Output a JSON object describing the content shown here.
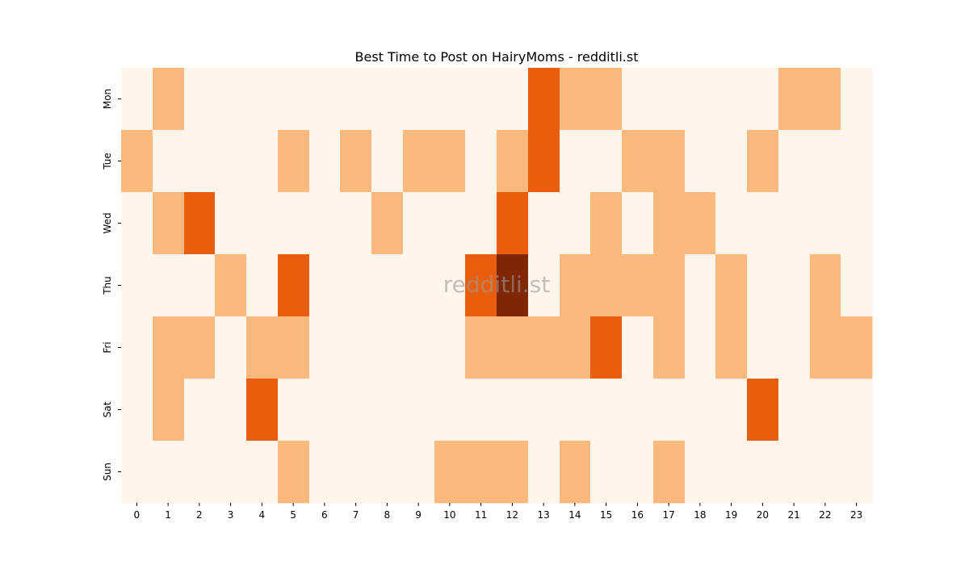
{
  "chart_data": {
    "type": "heatmap",
    "title": "Best Time to Post on HairyMoms - redditli.st",
    "watermark": "redditli.st",
    "xlabel": "",
    "ylabel": "",
    "x_categories": [
      "0",
      "1",
      "2",
      "3",
      "4",
      "5",
      "6",
      "7",
      "8",
      "9",
      "10",
      "11",
      "12",
      "13",
      "14",
      "15",
      "16",
      "17",
      "18",
      "19",
      "20",
      "21",
      "22",
      "23"
    ],
    "y_categories": [
      "Mon",
      "Tue",
      "Wed",
      "Thu",
      "Fri",
      "Sat",
      "Sun"
    ],
    "values": [
      [
        0,
        1,
        0,
        0,
        0,
        0,
        0,
        0,
        0,
        0,
        0,
        0,
        0,
        2,
        1,
        1,
        0,
        0,
        0,
        0,
        0,
        1,
        1,
        0
      ],
      [
        1,
        0,
        0,
        0,
        0,
        1,
        0,
        1,
        0,
        1,
        1,
        0,
        1,
        2,
        0,
        0,
        1,
        1,
        0,
        0,
        1,
        0,
        0,
        0
      ],
      [
        0,
        1,
        2,
        0,
        0,
        0,
        0,
        0,
        1,
        0,
        0,
        0,
        2,
        0,
        0,
        1,
        0,
        1,
        1,
        0,
        0,
        0,
        0,
        0
      ],
      [
        0,
        0,
        0,
        1,
        0,
        2,
        0,
        0,
        0,
        0,
        0,
        2,
        3,
        0,
        1,
        1,
        1,
        1,
        0,
        1,
        0,
        0,
        1,
        0
      ],
      [
        0,
        1,
        1,
        0,
        1,
        1,
        0,
        0,
        0,
        0,
        0,
        1,
        1,
        1,
        1,
        2,
        0,
        1,
        0,
        1,
        0,
        0,
        1,
        1
      ],
      [
        0,
        1,
        0,
        0,
        2,
        0,
        0,
        0,
        0,
        0,
        0,
        0,
        0,
        0,
        0,
        0,
        0,
        0,
        0,
        0,
        2,
        0,
        0,
        0
      ],
      [
        0,
        0,
        0,
        0,
        0,
        1,
        0,
        0,
        0,
        0,
        1,
        1,
        1,
        0,
        1,
        0,
        0,
        1,
        0,
        0,
        0,
        0,
        0,
        0
      ]
    ],
    "value_range": [
      0,
      3
    ],
    "colors": [
      "#fff5eb",
      "#fdb97d",
      "#e95e0d",
      "#7f2704"
    ],
    "colorbar": false
  }
}
